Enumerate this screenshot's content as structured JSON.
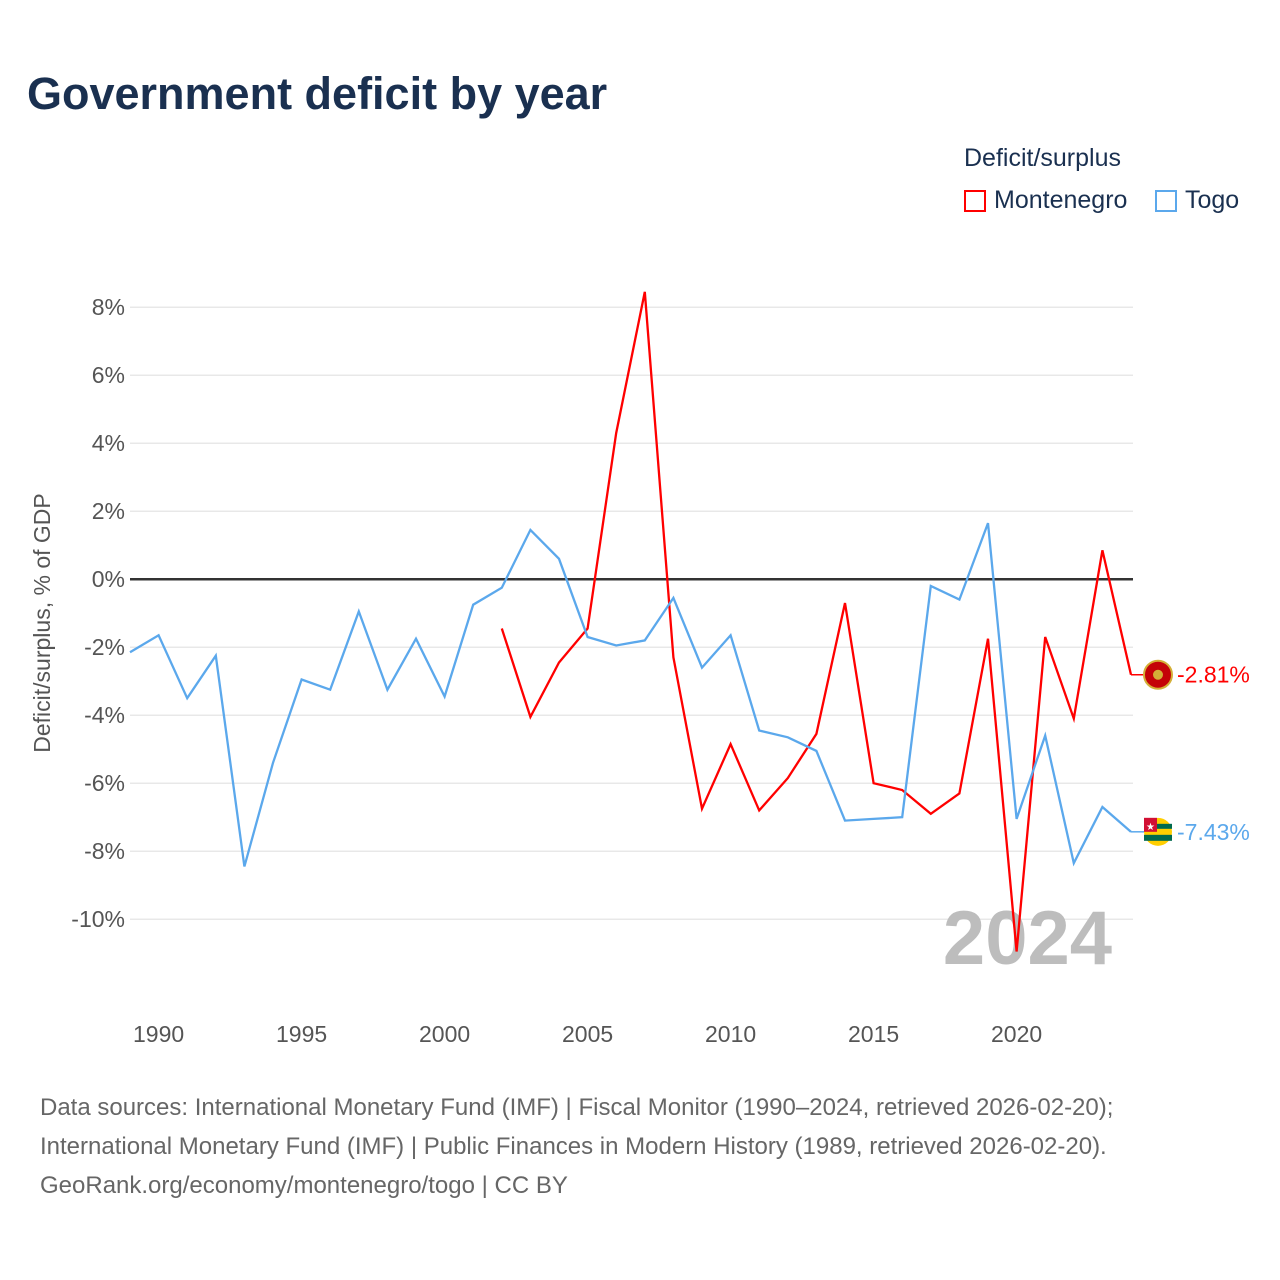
{
  "title": "Government deficit by year",
  "legend": {
    "title": "Deficit/surplus",
    "items": [
      {
        "label": "Montenegro",
        "color": "#ff0000"
      },
      {
        "label": "Togo",
        "color": "#5ba8ec"
      }
    ]
  },
  "year_watermark": "2024",
  "footer": {
    "line1": "Data sources: International Monetary Fund (IMF) | Fiscal Monitor (1990–2024, retrieved 2026-02-20);",
    "line2": "International Monetary Fund (IMF) | Public Finances in Modern History (1989, retrieved 2026-02-20).",
    "line3": "GeoRank.org/economy/montenegro/togo | CC BY"
  },
  "chart_data": {
    "type": "line",
    "title": "Government deficit by year",
    "xlabel": "",
    "ylabel": "Deficit/surplus, % of GDP",
    "xlim": [
      1989,
      2024
    ],
    "ylim": [
      -12.2,
      8.8
    ],
    "x_ticks": [
      1990,
      1995,
      2000,
      2005,
      2010,
      2015,
      2020
    ],
    "y_ticks": [
      8,
      6,
      4,
      2,
      0,
      -2,
      -4,
      -6,
      -8,
      -10
    ],
    "y_tick_labels": [
      "8%",
      "6%",
      "4%",
      "2%",
      "0%",
      "-2%",
      "-4%",
      "-6%",
      "-8%",
      "-10%"
    ],
    "grid": true,
    "legend_position": "top-right",
    "series": [
      {
        "name": "Montenegro",
        "color": "#ff0000",
        "end_label": "-2.81%",
        "start_year": 2002,
        "values": [
          -1.45,
          -4.05,
          -2.45,
          -1.45,
          4.3,
          8.45,
          -2.3,
          -6.75,
          -4.85,
          -6.8,
          -5.85,
          -4.55,
          -0.7,
          -6.0,
          -6.2,
          -6.9,
          -6.3,
          -1.75,
          -10.95,
          -1.7,
          -4.1,
          0.85,
          -2.81
        ]
      },
      {
        "name": "Togo",
        "color": "#5ba8ec",
        "end_label": "-7.43%",
        "start_year": 1989,
        "values": [
          -2.15,
          -1.65,
          -3.5,
          -2.25,
          -8.45,
          -5.4,
          -2.95,
          -3.25,
          -0.95,
          -3.25,
          -1.75,
          -3.45,
          -0.75,
          -0.25,
          1.45,
          0.6,
          -1.7,
          -1.95,
          -1.8,
          -0.55,
          -2.6,
          -1.65,
          -4.45,
          -4.65,
          -5.05,
          -7.1,
          -7.05,
          -7.0,
          -0.2,
          -0.6,
          1.65,
          -7.05,
          -4.6,
          -8.35,
          -6.7,
          -7.43
        ]
      }
    ]
  }
}
